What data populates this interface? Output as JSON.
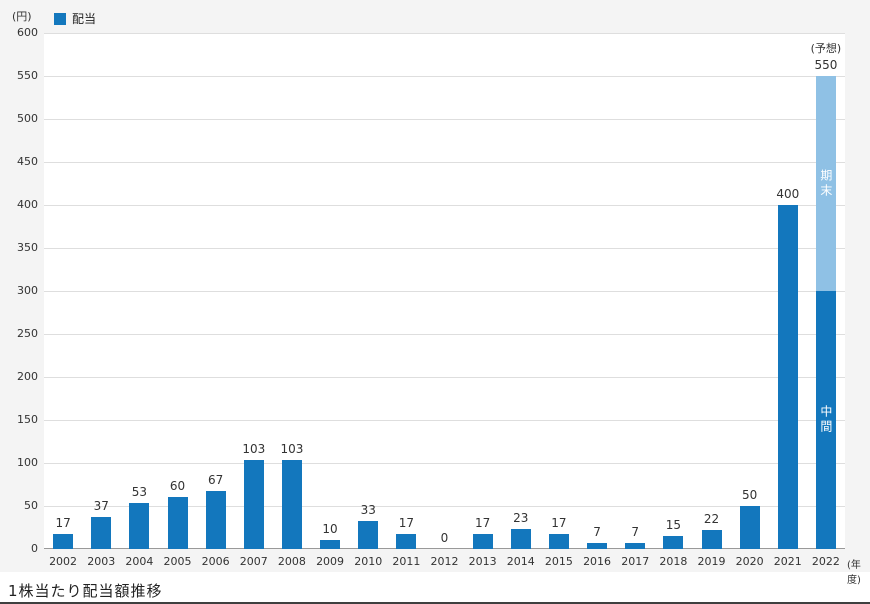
{
  "caption": "1株当たり配当額推移",
  "chart_data": {
    "type": "bar",
    "title": "1株当たり配当額推移",
    "y_unit_label": "(円)",
    "x_unit_label": "(年度)",
    "legend_label": "配当",
    "legend_position": "top-left",
    "grid": true,
    "ylim": [
      0,
      600
    ],
    "ytick_step": 50,
    "categories": [
      "2002",
      "2003",
      "2004",
      "2005",
      "2006",
      "2007",
      "2008",
      "2009",
      "2010",
      "2011",
      "2012",
      "2013",
      "2014",
      "2015",
      "2016",
      "2017",
      "2018",
      "2019",
      "2020",
      "2021",
      "2022"
    ],
    "values": [
      17,
      37,
      53,
      60,
      67,
      103,
      103,
      10,
      33,
      17,
      0,
      17,
      23,
      17,
      7,
      7,
      15,
      22,
      50,
      400,
      550
    ],
    "colors": {
      "bar": "#1377bd",
      "bar_forecast_top": "#8fc1e5",
      "panel_background": "#f4f4f4",
      "plot_background": "#ffffff"
    },
    "forecast": {
      "category": "2022",
      "annotation": "(予想)",
      "total": 550,
      "segments": [
        {
          "label": "中間",
          "value": 300,
          "color_key": "bar"
        },
        {
          "label": "期末",
          "value": 250,
          "color_key": "bar_forecast_top"
        }
      ]
    }
  }
}
